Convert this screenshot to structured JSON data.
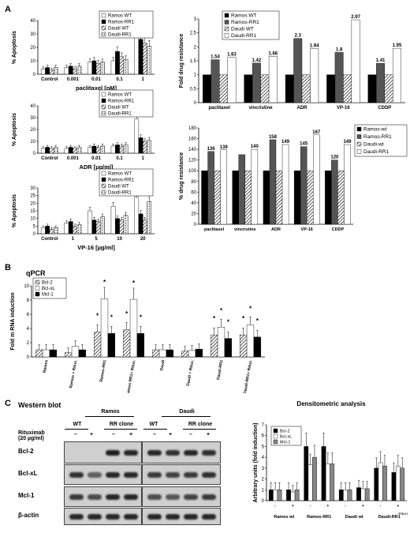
{
  "panel_labels": {
    "a": "A",
    "b": "B",
    "c": "C"
  },
  "section_titles": {
    "qpcr": "qPCR",
    "western": "Western blot",
    "densitometry": "Densitometric analysis"
  },
  "colors": {
    "black": "#000000",
    "dark_gray": "#555555",
    "gray": "#888888",
    "light_gray": "#c8c8c8",
    "white": "#ffffff"
  },
  "chart_data": [
    {
      "id": "paclitaxel_apoptosis",
      "type": "bar",
      "title": "",
      "xlabel": "paclitaxel [nM]",
      "ylabel": "% Apoptosis",
      "ylim": [
        0,
        40
      ],
      "yticks": [
        0,
        10,
        20,
        30,
        40
      ],
      "grid": false,
      "legend": "top-right",
      "categories": [
        "Control",
        "0.001",
        "0.01",
        "0.1",
        "1"
      ],
      "series": [
        {
          "name": "Ramos WT",
          "values": [
            4,
            5,
            9,
            10,
            35
          ]
        },
        {
          "name": "Ramos-RR1",
          "values": [
            5,
            6,
            10,
            17,
            26
          ]
        },
        {
          "name": "Daudi WT",
          "values": [
            3,
            4,
            8,
            13,
            23
          ]
        },
        {
          "name": "Daudi-RR1",
          "values": [
            5,
            6,
            9,
            11,
            21
          ]
        }
      ]
    },
    {
      "id": "adr_apoptosis",
      "type": "bar",
      "title": "",
      "xlabel": "ADR [µg/ml]",
      "ylabel": "% Apoptosis",
      "ylim": [
        0,
        40
      ],
      "yticks": [
        0,
        10,
        20,
        30,
        40
      ],
      "grid": false,
      "legend": "top-right",
      "categories": [
        "Control",
        "0.001",
        "0.01",
        "0.1",
        "1"
      ],
      "series": [
        {
          "name": "Ramos WT",
          "values": [
            4,
            4,
            5,
            6,
            29
          ]
        },
        {
          "name": "Ramos-RR1",
          "values": [
            5,
            5,
            6,
            7,
            13
          ]
        },
        {
          "name": "Daudi WT",
          "values": [
            4,
            4,
            5,
            6,
            10
          ]
        },
        {
          "name": "Daudi-RR1",
          "values": [
            5,
            5,
            6,
            7,
            11
          ]
        }
      ]
    },
    {
      "id": "vp16_apoptosis",
      "type": "bar",
      "title": "",
      "xlabel": "VP-16 [µg/ml]",
      "ylabel": "% Apoptosis",
      "ylim": [
        0,
        30
      ],
      "yticks": [
        0,
        5,
        10,
        15,
        20,
        25,
        30
      ],
      "grid": false,
      "legend": "top-right",
      "categories": [
        "Control",
        "1",
        "5",
        "10",
        "20"
      ],
      "series": [
        {
          "name": "Ramos WT",
          "values": [
            4,
            7,
            15,
            18,
            24
          ]
        },
        {
          "name": "Ramos-RR1",
          "values": [
            5,
            8,
            9,
            10,
            13
          ]
        },
        {
          "name": "Daudi WT",
          "values": [
            3,
            5,
            8,
            9,
            9
          ]
        },
        {
          "name": "Daudi-RR1",
          "values": [
            4,
            6,
            11,
            12,
            21
          ]
        }
      ]
    },
    {
      "id": "fold_resistance",
      "type": "bar",
      "title": "",
      "xlabel": "",
      "ylabel": "Fold drug resistance",
      "ylim": [
        0,
        3
      ],
      "yticks": [
        0,
        0.5,
        1,
        1.5,
        2,
        2.5,
        3
      ],
      "grid": false,
      "legend": "top-left",
      "categories": [
        "paclitaxel",
        "vincristine",
        "ADR",
        "VP-16",
        "CDDP"
      ],
      "series": [
        {
          "name": "Ramos WT",
          "values": [
            1,
            1,
            1,
            1,
            1
          ]
        },
        {
          "name": "Ramos-RR1",
          "values": [
            1.54,
            1.42,
            2.3,
            1.8,
            1.41
          ]
        },
        {
          "name": "Daudi WT",
          "values": [
            1,
            1,
            1,
            1,
            1
          ]
        },
        {
          "name": "Daudi-RR1",
          "values": [
            1.63,
            1.66,
            1.94,
            2.97,
            1.95
          ]
        }
      ],
      "data_labels": [
        "1.54",
        "1.63",
        "1.42",
        "1.66",
        "2.3",
        "1.94",
        "1.8",
        "2.97",
        "1.41",
        "1.95"
      ]
    },
    {
      "id": "percent_resistance",
      "type": "bar",
      "title": "",
      "xlabel": "",
      "ylabel": "% drug resistance",
      "ylim": [
        0,
        180
      ],
      "yticks": [
        0,
        20,
        40,
        60,
        80,
        100,
        120,
        140,
        160,
        180
      ],
      "grid": false,
      "legend": "right",
      "categories": [
        "paclitaxel",
        "vincristine",
        "ADR",
        "VP-16",
        "CDDP"
      ],
      "series": [
        {
          "name": "Ramos-wt",
          "values": [
            100,
            100,
            100,
            100,
            100
          ]
        },
        {
          "name": "Ramos-RR1",
          "values": [
            136,
            130,
            158,
            145,
            120
          ]
        },
        {
          "name": "Daudi-wt",
          "values": [
            100,
            100,
            100,
            100,
            100
          ]
        },
        {
          "name": "Daudi-RR1",
          "values": [
            139,
            140,
            149,
            167,
            149
          ]
        }
      ],
      "data_labels": [
        "136",
        "139",
        "",
        "140",
        "158",
        "149",
        "145",
        "167",
        "120",
        "149"
      ]
    },
    {
      "id": "qpcr",
      "type": "bar",
      "title": "",
      "xlabel": "",
      "ylabel": "Fold m RNA induction",
      "ylim": [
        0,
        10
      ],
      "yticks": [
        0,
        2,
        4,
        6,
        8,
        10
      ],
      "grid": false,
      "legend": "top-left",
      "categories": [
        "Ramos",
        "Ramos + Ritux.",
        "Ramos-RR1",
        "Ramos RR1+ Ritux.",
        "Daudi",
        "Daudi + Ritux.",
        "Daudi-RR1",
        "Daudi-RR1+ Ritux."
      ],
      "series": [
        {
          "name": "Bcl-2",
          "values": [
            1,
            0.6,
            3.5,
            3.8,
            1,
            0.8,
            3.1,
            3.1
          ]
        },
        {
          "name": "Bcl-xL",
          "values": [
            1,
            1.5,
            8.2,
            8.1,
            1,
            0.9,
            4.2,
            4.5
          ]
        },
        {
          "name": "Mcl-1",
          "values": [
            1,
            1.0,
            3.3,
            3.3,
            1,
            1.1,
            2.6,
            2.8
          ]
        }
      ],
      "annotations": "*"
    },
    {
      "id": "densitometry",
      "type": "bar",
      "title": "Densitometric analysis",
      "xlabel": "",
      "ylabel": "Arbitrary units (fold induction)",
      "ylim": [
        0,
        7
      ],
      "yticks": [
        0,
        1,
        2,
        3,
        4,
        5,
        6,
        7
      ],
      "grid": false,
      "legend": "top-left",
      "categories": [
        "-",
        "+",
        "-",
        "+",
        "-",
        "+",
        "-",
        "+"
      ],
      "group_labels": [
        "Ramos wt",
        "Ramos-RR1",
        "Daudi wt",
        "Daudi-RR1"
      ],
      "row_label": "Rituxi.",
      "series": [
        {
          "name": "Bcl-2",
          "values": [
            1,
            1,
            5,
            5,
            1,
            1.2,
            3,
            2.6
          ]
        },
        {
          "name": "Bcl-xL",
          "values": [
            1,
            0.8,
            3.3,
            3.4,
            1,
            1.1,
            3.5,
            3.2
          ]
        },
        {
          "name": "Mcl-1",
          "values": [
            1,
            1,
            4,
            3.4,
            1,
            1.1,
            3.2,
            3.0
          ]
        }
      ]
    }
  ],
  "western": {
    "treatment_label": "Rituximab (20 µg/ml)",
    "blocks": [
      {
        "title": "Ramos",
        "groups": [
          "WT",
          "RR clone"
        ]
      },
      {
        "title": "Daudi",
        "groups": [
          "WT",
          "RR clone"
        ]
      }
    ],
    "lane_signs": [
      "–",
      "+",
      "–",
      "+"
    ],
    "rows": [
      {
        "label": "Bcl-2",
        "ramos": [
          0.0,
          0.0,
          0.95,
          0.9
        ],
        "daudi": [
          0.9,
          0.85,
          0.9,
          0.85
        ]
      },
      {
        "label": "Bcl-xL",
        "ramos": [
          0.85,
          0.6,
          0.9,
          0.9
        ],
        "daudi": [
          0.8,
          0.75,
          0.8,
          0.85
        ]
      },
      {
        "label": "Mcl-1",
        "ramos": [
          0.8,
          0.7,
          0.9,
          0.9
        ],
        "daudi": [
          0.7,
          0.65,
          0.75,
          0.8
        ]
      },
      {
        "label": "β-actin",
        "ramos": [
          0.9,
          0.9,
          0.9,
          0.9
        ],
        "daudi": [
          0.9,
          0.9,
          0.9,
          0.9
        ]
      }
    ]
  }
}
